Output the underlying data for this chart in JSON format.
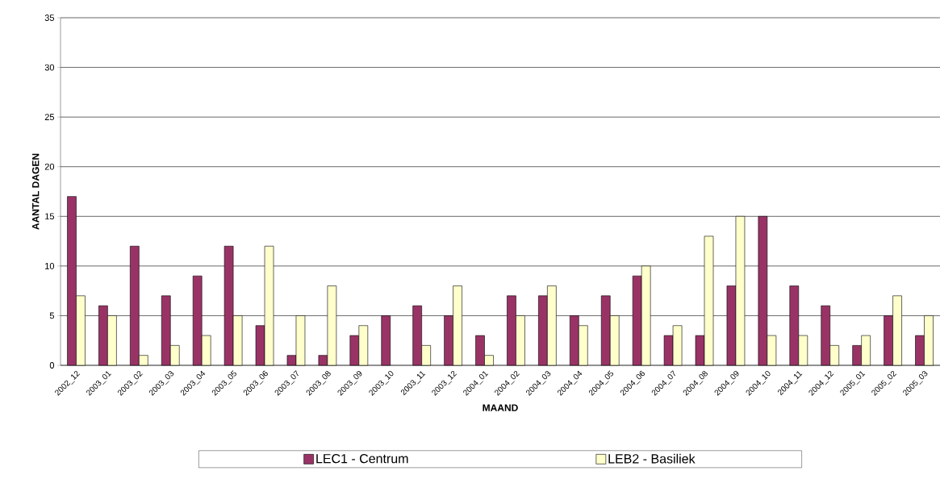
{
  "chart_data": {
    "type": "bar",
    "xlabel": "MAAND",
    "ylabel": "AANTAL DAGEN",
    "categories": [
      "2002_12",
      "2003_01",
      "2003_02",
      "2003_03",
      "2003_04",
      "2003_05",
      "2003_06",
      "2003_07",
      "2003_08",
      "2003_09",
      "2003_10",
      "2003_11",
      "2003_12",
      "2004_01",
      "2004_02",
      "2004_03",
      "2004_04",
      "2004_05",
      "2004_06",
      "2004_07",
      "2004_08",
      "2004_09",
      "2004_10",
      "2004_11",
      "2004_12",
      "2005_01",
      "2005_02",
      "2005_03"
    ],
    "series": [
      {
        "name": "LEC1 - Centrum",
        "color": "#993366",
        "values": [
          17,
          6,
          12,
          7,
          9,
          12,
          4,
          1,
          1,
          3,
          5,
          6,
          5,
          3,
          7,
          7,
          5,
          7,
          9,
          3,
          3,
          8,
          15,
          8,
          6,
          2,
          5,
          3
        ]
      },
      {
        "name": "LEB2 - Basiliek",
        "color": "#ffffcc",
        "values": [
          7,
          5,
          1,
          2,
          3,
          5,
          12,
          5,
          8,
          4,
          null,
          2,
          8,
          1,
          5,
          8,
          4,
          5,
          10,
          4,
          13,
          15,
          3,
          3,
          2,
          3,
          7,
          5
        ]
      }
    ],
    "ylim": [
      0,
      35
    ],
    "yticks": [
      0,
      5,
      10,
      15,
      20,
      25,
      30,
      35
    ],
    "grid": "y",
    "legend": "bottom"
  }
}
